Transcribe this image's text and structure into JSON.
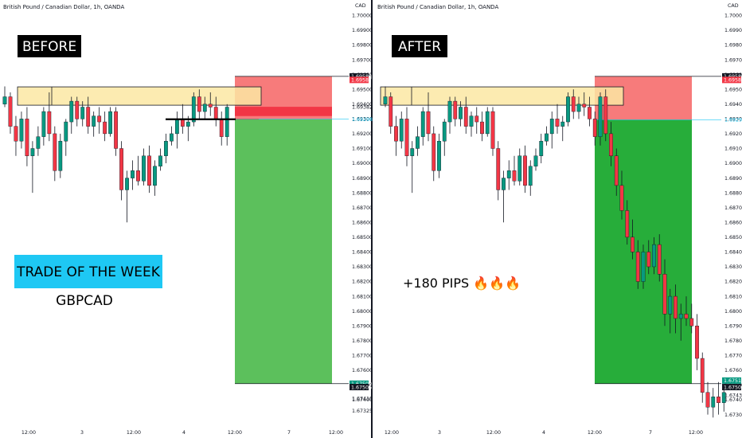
{
  "colors": {
    "bull": "#089981",
    "bear": "#f23645",
    "stop_zone": "#f77b7b",
    "target_zone_before": "#5cc05c",
    "target_zone_after": "#27ad3a",
    "resistance_zone": "#fbe7a3",
    "label_bg": "#000000",
    "banner_bg": "#1ec8f4",
    "price_marker": "#1ec8f4",
    "flag_red": "#f23645",
    "flag_black": "#131722",
    "flag_green": "#089981"
  },
  "chart_data": [
    {
      "type": "candlestick",
      "title": "British Pound / Canadian Dollar, 1h, OANDA",
      "currency": "CAD",
      "label": "BEFORE",
      "banner": "TRADE OF THE WEEK",
      "pair": "GBPCAD",
      "y_range": [
        1.6726,
        1.7004
      ],
      "y_ticks": [
        "1.70000",
        "1.69900",
        "1.69800",
        "1.69700",
        "1.69600",
        "1.69500",
        "1.69400",
        "1.69300",
        "1.69200",
        "1.69100",
        "1.69000",
        "1.68900",
        "1.68800",
        "1.68700",
        "1.68600",
        "1.68500",
        "1.68400",
        "1.68300",
        "1.68200",
        "1.68100",
        "1.68000",
        "1.67900",
        "1.67800",
        "1.67700",
        "1.67600",
        "1.67500",
        "1.67400",
        "1.67325"
      ],
      "x_ticks": [
        "12:00",
        "3",
        "12:00",
        "4",
        "12:00",
        "7",
        "12:00"
      ],
      "price_flags": [
        {
          "text": "1.69588",
          "kind": "black",
          "price": 1.69588
        },
        {
          "text": "1.69587",
          "kind": "red",
          "price": 1.69564
        },
        {
          "text": "1.69382",
          "kind": "plain",
          "price": 1.69382
        },
        {
          "text": "1.69298",
          "kind": "marker",
          "price": 1.69298
        },
        {
          "text": "1.67509",
          "kind": "green",
          "price": 1.67509
        },
        {
          "text": "1.67506",
          "kind": "black",
          "price": 1.67486
        },
        {
          "text": "1.67410",
          "kind": "plain",
          "price": 1.6741
        }
      ],
      "resistance_zone": {
        "high": 1.69517,
        "low": 1.69393,
        "start_index": 0,
        "end_index": 40
      },
      "trade": {
        "entry": 1.69298,
        "stop": 1.69588,
        "stop_high": 1.69588,
        "stop_low": 1.69298,
        "target": 1.67509,
        "start_index": 40,
        "end_index": 56
      },
      "entry_line": {
        "price": 1.69298,
        "start_index": 28,
        "end_index": 44
      },
      "candles": [
        [
          1.694,
          1.6952,
          1.6938,
          1.6945
        ],
        [
          1.6945,
          1.6948,
          1.692,
          1.6925
        ],
        [
          1.6925,
          1.6932,
          1.6905,
          1.6915
        ],
        [
          1.6915,
          1.6935,
          1.691,
          1.693
        ],
        [
          1.693,
          1.6938,
          1.6898,
          1.6905
        ],
        [
          1.6905,
          1.6915,
          1.688,
          1.691
        ],
        [
          1.691,
          1.6925,
          1.6905,
          1.6918
        ],
        [
          1.6918,
          1.6938,
          1.6912,
          1.6935
        ],
        [
          1.6935,
          1.6948,
          1.6915,
          1.692
        ],
        [
          1.692,
          1.6925,
          1.6888,
          1.6895
        ],
        [
          1.6895,
          1.692,
          1.689,
          1.6915
        ],
        [
          1.6915,
          1.693,
          1.6905,
          1.6928
        ],
        [
          1.6928,
          1.6945,
          1.692,
          1.6942
        ],
        [
          1.6942,
          1.6945,
          1.6925,
          1.693
        ],
        [
          1.693,
          1.6942,
          1.6925,
          1.6938
        ],
        [
          1.6938,
          1.6945,
          1.692,
          1.6925
        ],
        [
          1.6925,
          1.6935,
          1.6918,
          1.6932
        ],
        [
          1.6932,
          1.6938,
          1.692,
          1.6928
        ],
        [
          1.6928,
          1.6935,
          1.6915,
          1.692
        ],
        [
          1.692,
          1.6938,
          1.6918,
          1.6935
        ],
        [
          1.6935,
          1.6938,
          1.6905,
          1.691
        ],
        [
          1.691,
          1.6915,
          1.6875,
          1.6882
        ],
        [
          1.6882,
          1.6895,
          1.686,
          1.689
        ],
        [
          1.689,
          1.6902,
          1.6882,
          1.6895
        ],
        [
          1.6895,
          1.6905,
          1.6885,
          1.6888
        ],
        [
          1.6888,
          1.691,
          1.6885,
          1.6905
        ],
        [
          1.6905,
          1.6912,
          1.688,
          1.6885
        ],
        [
          1.6885,
          1.6902,
          1.6878,
          1.6898
        ],
        [
          1.6898,
          1.691,
          1.6895,
          1.6905
        ],
        [
          1.6905,
          1.692,
          1.69,
          1.6915
        ],
        [
          1.6915,
          1.6925,
          1.6912,
          1.692
        ],
        [
          1.692,
          1.6935,
          1.691,
          1.693
        ],
        [
          1.693,
          1.694,
          1.692,
          1.6925
        ],
        [
          1.6925,
          1.6932,
          1.6915,
          1.6928
        ],
        [
          1.6928,
          1.6948,
          1.6925,
          1.6945
        ],
        [
          1.6945,
          1.695,
          1.693,
          1.6935
        ],
        [
          1.6935,
          1.6945,
          1.693,
          1.694
        ],
        [
          1.694,
          1.6948,
          1.6932,
          1.6938
        ],
        [
          1.6938,
          1.6945,
          1.6925,
          1.693
        ],
        [
          1.693,
          1.6935,
          1.6912,
          1.6918
        ],
        [
          1.6918,
          1.694,
          1.6912,
          1.6938
        ]
      ]
    },
    {
      "type": "candlestick",
      "title": "British Pound / Canadian Dollar, 1h, OANDA",
      "currency": "CAD",
      "label": "AFTER",
      "result": "+180 PIPS 🔥🔥🔥",
      "y_range": [
        1.6726,
        1.7004
      ],
      "y_ticks": [
        "1.70000",
        "1.69900",
        "1.69800",
        "1.69700",
        "1.69600",
        "1.69500",
        "1.69400",
        "1.69300",
        "1.69200",
        "1.69100",
        "1.69000",
        "1.68900",
        "1.68800",
        "1.68700",
        "1.68600",
        "1.68500",
        "1.68400",
        "1.68300",
        "1.68200",
        "1.68100",
        "1.68000",
        "1.67900",
        "1.67800",
        "1.67700",
        "1.67600",
        "1.67500",
        "1.67430",
        "1.67400",
        "1.67300"
      ],
      "x_ticks": [
        "12:00",
        "3",
        "12:00",
        "4",
        "12:00",
        "7",
        "12:00"
      ],
      "price_flags": [
        {
          "text": "1.69589",
          "kind": "black",
          "price": 1.69588
        },
        {
          "text": "1.69587",
          "kind": "red",
          "price": 1.69564
        },
        {
          "text": "1.69294",
          "kind": "marker",
          "price": 1.69294
        },
        {
          "text": "1.67512",
          "kind": "green",
          "price": 1.6753
        },
        {
          "text": "1.67508",
          "kind": "black",
          "price": 1.67486
        }
      ],
      "resistance_zone": {
        "high": 1.69517,
        "low": 1.69393,
        "start_index": 0,
        "end_index": 40
      },
      "trade": {
        "entry": 1.69294,
        "stop": 1.69588,
        "stop_high": 1.69588,
        "stop_low": 1.69294,
        "target": 1.67509,
        "start_index": 34,
        "end_index": 56
      },
      "candles": [
        [
          1.694,
          1.6952,
          1.6938,
          1.6945
        ],
        [
          1.6945,
          1.6948,
          1.692,
          1.6925
        ],
        [
          1.6925,
          1.6932,
          1.6905,
          1.6915
        ],
        [
          1.6915,
          1.6935,
          1.691,
          1.693
        ],
        [
          1.693,
          1.6938,
          1.6898,
          1.6905
        ],
        [
          1.6905,
          1.6915,
          1.688,
          1.691
        ],
        [
          1.691,
          1.6925,
          1.6905,
          1.6918
        ],
        [
          1.6918,
          1.6938,
          1.6912,
          1.6935
        ],
        [
          1.6935,
          1.6948,
          1.6915,
          1.692
        ],
        [
          1.692,
          1.6925,
          1.6888,
          1.6895
        ],
        [
          1.6895,
          1.692,
          1.689,
          1.6915
        ],
        [
          1.6915,
          1.693,
          1.6905,
          1.6928
        ],
        [
          1.6928,
          1.6945,
          1.692,
          1.6942
        ],
        [
          1.6942,
          1.6945,
          1.6925,
          1.693
        ],
        [
          1.693,
          1.6942,
          1.6925,
          1.6938
        ],
        [
          1.6938,
          1.6945,
          1.692,
          1.6925
        ],
        [
          1.6925,
          1.6935,
          1.6918,
          1.6932
        ],
        [
          1.6932,
          1.6938,
          1.692,
          1.6928
        ],
        [
          1.6928,
          1.6935,
          1.6915,
          1.692
        ],
        [
          1.692,
          1.6938,
          1.6918,
          1.6935
        ],
        [
          1.6935,
          1.6938,
          1.6905,
          1.691
        ],
        [
          1.691,
          1.6915,
          1.6875,
          1.6882
        ],
        [
          1.6882,
          1.6895,
          1.686,
          1.689
        ],
        [
          1.689,
          1.6902,
          1.6882,
          1.6895
        ],
        [
          1.6895,
          1.6905,
          1.6885,
          1.6888
        ],
        [
          1.6888,
          1.691,
          1.6885,
          1.6905
        ],
        [
          1.6905,
          1.6912,
          1.688,
          1.6885
        ],
        [
          1.6885,
          1.6902,
          1.6878,
          1.6898
        ],
        [
          1.6898,
          1.691,
          1.6895,
          1.6905
        ],
        [
          1.6905,
          1.692,
          1.69,
          1.6915
        ],
        [
          1.6915,
          1.6925,
          1.6912,
          1.692
        ],
        [
          1.692,
          1.6935,
          1.691,
          1.693
        ],
        [
          1.693,
          1.694,
          1.692,
          1.6925
        ],
        [
          1.6925,
          1.6932,
          1.6915,
          1.6928
        ],
        [
          1.6928,
          1.6948,
          1.6925,
          1.6945
        ],
        [
          1.6945,
          1.695,
          1.693,
          1.6935
        ],
        [
          1.6935,
          1.6945,
          1.693,
          1.694
        ],
        [
          1.694,
          1.6948,
          1.6932,
          1.6938
        ],
        [
          1.6938,
          1.6945,
          1.6925,
          1.693
        ],
        [
          1.693,
          1.6935,
          1.6912,
          1.6918
        ],
        [
          1.6918,
          1.6948,
          1.6912,
          1.6945
        ],
        [
          1.6945,
          1.695,
          1.6915,
          1.692
        ],
        [
          1.692,
          1.6928,
          1.6898,
          1.6905
        ],
        [
          1.6905,
          1.691,
          1.6878,
          1.6885
        ],
        [
          1.6885,
          1.6895,
          1.6862,
          1.6868
        ],
        [
          1.6868,
          1.6875,
          1.6845,
          1.685
        ],
        [
          1.685,
          1.6862,
          1.6835,
          1.684
        ],
        [
          1.684,
          1.6848,
          1.6815,
          1.682
        ],
        [
          1.682,
          1.6845,
          1.6815,
          1.684
        ],
        [
          1.684,
          1.6848,
          1.6825,
          1.683
        ],
        [
          1.683,
          1.685,
          1.6825,
          1.6845
        ],
        [
          1.6845,
          1.6852,
          1.682,
          1.6825
        ],
        [
          1.6825,
          1.6835,
          1.679,
          1.6798
        ],
        [
          1.6798,
          1.6815,
          1.6785,
          1.681
        ],
        [
          1.681,
          1.6818,
          1.6785,
          1.6795
        ],
        [
          1.6795,
          1.6805,
          1.678,
          1.6798
        ],
        [
          1.6798,
          1.681,
          1.679,
          1.6795
        ],
        [
          1.6795,
          1.6805,
          1.6785,
          1.679
        ],
        [
          1.679,
          1.6798,
          1.676,
          1.6768
        ],
        [
          1.6768,
          1.6772,
          1.6738,
          1.6745
        ],
        [
          1.6745,
          1.6752,
          1.673,
          1.6735
        ],
        [
          1.6735,
          1.6748,
          1.6728,
          1.6742
        ],
        [
          1.6742,
          1.6752,
          1.673,
          1.6738
        ],
        [
          1.6738,
          1.6748,
          1.6732,
          1.6745
        ]
      ]
    }
  ]
}
